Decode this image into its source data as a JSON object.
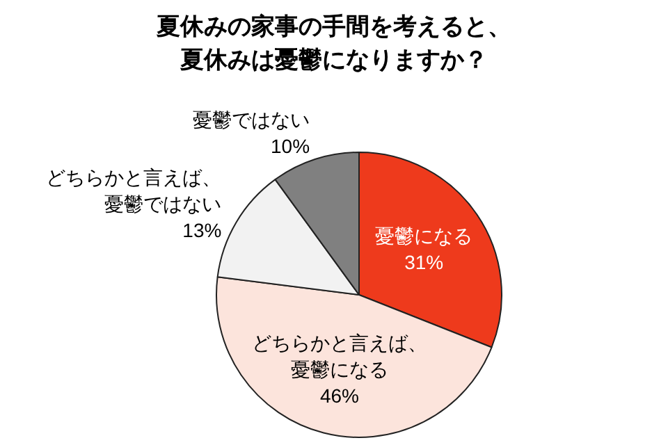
{
  "chart_data": {
    "type": "pie",
    "title": "夏休みの家事の手間を考えると、夏休みは憂鬱になりますか？",
    "categories": [
      "憂鬱になる",
      "どちらかと言えば、憂鬱になる",
      "どちらかと言えば、憂鬱ではない",
      "憂鬱ではない"
    ],
    "values": [
      31,
      46,
      13,
      10
    ],
    "colors": [
      "#ee3a1c",
      "#fce4dc",
      "#f2f2f2",
      "#808080"
    ],
    "value_labels": [
      "31%",
      "46%",
      "13%",
      "10%"
    ]
  }
}
